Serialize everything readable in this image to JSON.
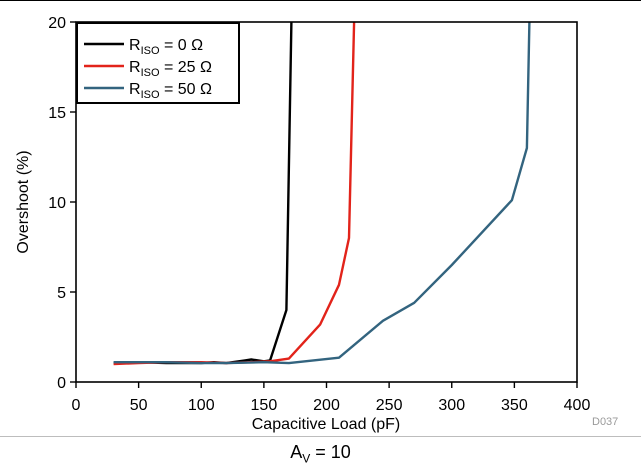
{
  "chart_data": {
    "type": "line",
    "xlabel": "Capacitive Load (pF)",
    "ylabel": "Overshoot (%)",
    "xlim": [
      0,
      400
    ],
    "ylim": [
      0,
      20
    ],
    "xticks": [
      0,
      50,
      100,
      150,
      200,
      250,
      300,
      350,
      400
    ],
    "yticks": [
      0,
      5,
      10,
      15,
      20
    ],
    "grid": false,
    "legend_position": "top-left",
    "series": [
      {
        "name_main": "R",
        "name_sub": "ISO",
        "name_rest": " = 0 Ω",
        "color": "#000000",
        "x": [
          30,
          50,
          72,
          100,
          110,
          120,
          135,
          140,
          150,
          155,
          168,
          172
        ],
        "y": [
          1.05,
          1.1,
          1.05,
          1.05,
          1.1,
          1.05,
          1.2,
          1.25,
          1.15,
          1.2,
          4.0,
          20
        ]
      },
      {
        "name_main": "R",
        "name_sub": "ISO",
        "name_rest": " = 25 Ω",
        "color": "#e2231a",
        "x": [
          30,
          50,
          72,
          100,
          120,
          140,
          155,
          170,
          195,
          210,
          218,
          222
        ],
        "y": [
          1.0,
          1.05,
          1.1,
          1.1,
          1.05,
          1.1,
          1.15,
          1.3,
          3.2,
          5.4,
          8.0,
          20
        ]
      },
      {
        "name_main": "R",
        "name_sub": "ISO",
        "name_rest": " = 50 Ω",
        "color": "#33647f",
        "x": [
          30,
          50,
          72,
          100,
          120,
          150,
          170,
          210,
          245,
          270,
          300,
          348,
          360,
          362
        ],
        "y": [
          1.1,
          1.1,
          1.1,
          1.05,
          1.05,
          1.1,
          1.05,
          1.35,
          3.4,
          4.4,
          6.5,
          10.1,
          13.0,
          20
        ]
      }
    ]
  },
  "figure_id": "D037",
  "caption": {
    "main": "A",
    "sub": "V",
    "rest": " = 10"
  }
}
